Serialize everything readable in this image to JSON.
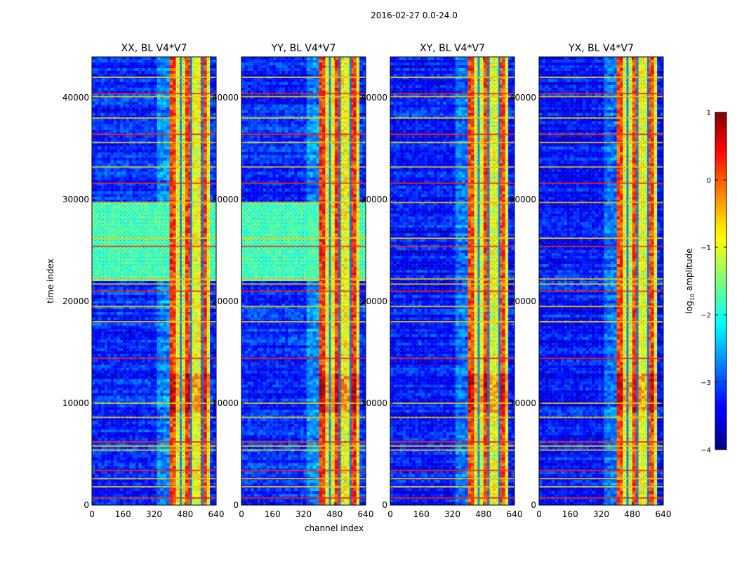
{
  "figure": {
    "suptitle": "2016-02-27 0.0-24.0"
  },
  "chart_data": {
    "type": "heatmap",
    "title": "2016-02-27 0.0-24.0",
    "xlabel": "channel index",
    "ylabel": "time index",
    "xlim": [
      0,
      640
    ],
    "ylim": [
      0,
      44000
    ],
    "xticks": [
      0,
      160,
      320,
      480,
      640
    ],
    "yticks": [
      0,
      10000,
      20000,
      30000,
      40000
    ],
    "panels": [
      {
        "title": "XX, BL V4*V7",
        "pol": "XX",
        "band_start": 400,
        "band_end": 610,
        "band_amp": 0.05,
        "bg_amp": -3.2,
        "strong_green_rows": [
          [
            22000,
            26500
          ],
          [
            26500,
            29800
          ]
        ]
      },
      {
        "title": "YY, BL V4*V7",
        "pol": "YY",
        "band_start": 400,
        "band_end": 600,
        "band_amp": 0.1,
        "bg_amp": -3.2,
        "strong_green_rows": [
          [
            22000,
            26500
          ],
          [
            26500,
            29800
          ]
        ]
      },
      {
        "title": "XY, BL V4*V7",
        "pol": "XY",
        "band_start": 400,
        "band_end": 600,
        "band_amp": 0.0,
        "bg_amp": -3.3,
        "strong_green_rows": []
      },
      {
        "title": "YX, BL V4*V7",
        "pol": "YX",
        "band_start": 400,
        "band_end": 600,
        "band_amp": 0.0,
        "bg_amp": -3.3,
        "strong_green_rows": []
      }
    ],
    "rfi_rows": [
      700,
      1800,
      2600,
      3400,
      5400,
      5800,
      6200,
      8600,
      10000,
      14400,
      18000,
      19500,
      21000,
      21700,
      22200,
      25400,
      26200,
      29700,
      31600,
      33200,
      35600,
      36400,
      38000,
      40100,
      40400,
      42000
    ],
    "colorbar": {
      "label": "log10 amplitude",
      "min": -4,
      "max": 1,
      "ticks": [
        1,
        0,
        -1,
        -2,
        -3,
        -4
      ],
      "tick_labels": [
        "1",
        "0",
        "−1",
        "−2",
        "−3",
        "−4"
      ],
      "colormap": "jet"
    }
  }
}
